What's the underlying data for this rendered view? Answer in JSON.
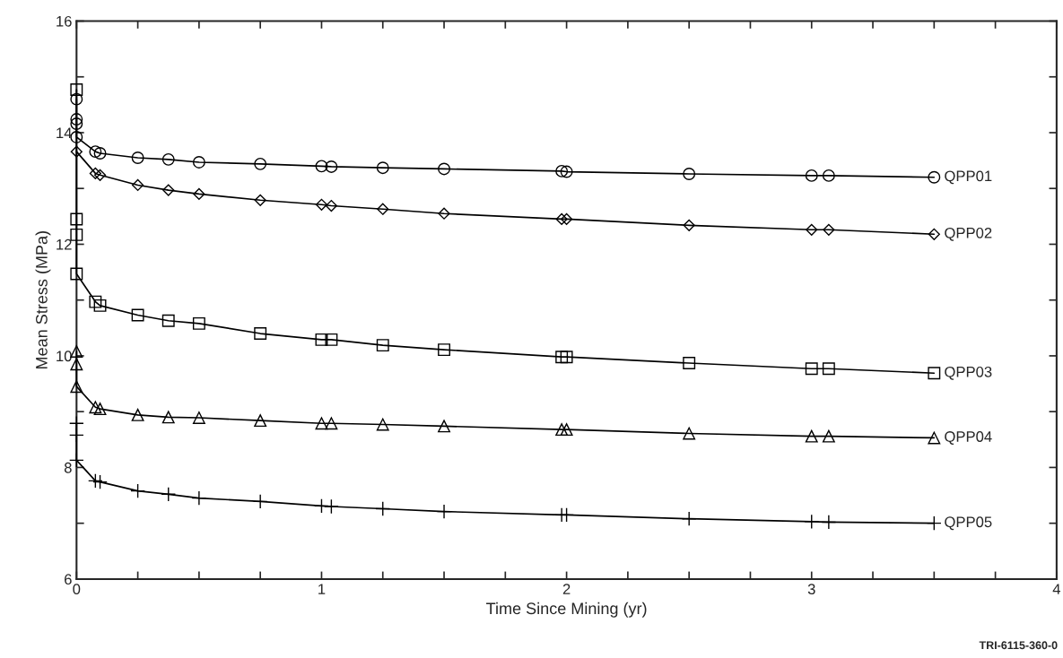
{
  "chart_data": {
    "type": "line",
    "xlabel": "Time Since Mining (yr)",
    "ylabel": "Mean Stress (MPa)",
    "xlim": [
      0,
      4
    ],
    "ylim": [
      6,
      16
    ],
    "xticks": [
      0,
      {
        "value": 0.25,
        "label": null
      },
      {
        "value": 0.5,
        "label": null
      },
      {
        "value": 0.75,
        "label": null
      },
      1,
      {
        "value": 1.25,
        "label": null
      },
      {
        "value": 1.5,
        "label": null
      },
      {
        "value": 1.75,
        "label": null
      },
      2,
      {
        "value": 2.25,
        "label": null
      },
      {
        "value": 2.5,
        "label": null
      },
      {
        "value": 2.75,
        "label": null
      },
      3,
      {
        "value": 3.25,
        "label": null
      },
      {
        "value": 3.5,
        "label": null
      },
      {
        "value": 3.75,
        "label": null
      },
      4
    ],
    "yticks": [
      6,
      {
        "value": 7,
        "label": null
      },
      8,
      {
        "value": 9,
        "label": null
      },
      10,
      {
        "value": 11,
        "label": null
      },
      12,
      {
        "value": 13,
        "label": null
      },
      14,
      {
        "value": 15,
        "label": null
      },
      16
    ],
    "grid": false,
    "legend": false,
    "series": [
      {
        "name": "QPP01",
        "color": "#000000",
        "marker": "circle",
        "x": [
          0,
          0,
          0,
          0,
          0.077,
          0.096,
          0.25,
          0.375,
          0.5,
          0.75,
          1.0,
          1.04,
          1.25,
          1.5,
          1.98,
          2.0,
          2.5,
          3.0,
          3.07,
          3.5
        ],
        "values": [
          14.6,
          14.24,
          14.16,
          13.92,
          13.66,
          13.63,
          13.55,
          13.52,
          13.47,
          13.44,
          13.4,
          13.39,
          13.37,
          13.35,
          13.31,
          13.3,
          13.26,
          13.23,
          13.23,
          13.2
        ]
      },
      {
        "name": "QPP02",
        "color": "#000000",
        "marker": "diamond",
        "x": [
          0,
          0.077,
          0.096,
          0.25,
          0.375,
          0.5,
          0.75,
          1.0,
          1.04,
          1.25,
          1.5,
          1.98,
          2.0,
          2.5,
          3.0,
          3.07,
          3.5
        ],
        "values": [
          13.66,
          13.27,
          13.24,
          13.06,
          12.97,
          12.9,
          12.79,
          12.71,
          12.69,
          12.63,
          12.55,
          12.45,
          12.45,
          12.34,
          12.26,
          12.26,
          12.18
        ]
      },
      {
        "name": "QPP03",
        "color": "#000000",
        "marker": "square",
        "x": [
          0,
          0,
          0,
          0,
          0.077,
          0.096,
          0.25,
          0.375,
          0.5,
          0.75,
          1.0,
          1.04,
          1.25,
          1.5,
          1.98,
          2.0,
          2.5,
          3.0,
          3.07,
          3.5
        ],
        "values": [
          14.77,
          12.45,
          12.17,
          11.47,
          10.97,
          10.9,
          10.73,
          10.63,
          10.58,
          10.4,
          10.29,
          10.29,
          10.19,
          10.11,
          9.98,
          9.98,
          9.87,
          9.77,
          9.77,
          9.69
        ]
      },
      {
        "name": "QPP04",
        "color": "#000000",
        "marker": "triangle",
        "x": [
          0,
          0,
          0,
          0.077,
          0.096,
          0.25,
          0.375,
          0.5,
          0.75,
          1.0,
          1.04,
          1.25,
          1.5,
          1.98,
          2.0,
          2.5,
          3.0,
          3.07,
          3.5
        ],
        "values": [
          10.08,
          9.85,
          9.45,
          9.08,
          9.05,
          8.94,
          8.9,
          8.89,
          8.84,
          8.79,
          8.79,
          8.77,
          8.74,
          8.68,
          8.68,
          8.61,
          8.56,
          8.56,
          8.53
        ]
      },
      {
        "name": "QPP05",
        "color": "#000000",
        "marker": "cross",
        "x": [
          0,
          0,
          0,
          0.077,
          0.096,
          0.25,
          0.375,
          0.5,
          0.75,
          1.0,
          1.04,
          1.25,
          1.5,
          1.98,
          2.0,
          2.5,
          3.0,
          3.07,
          3.5
        ],
        "values": [
          8.79,
          8.58,
          8.13,
          7.76,
          7.74,
          7.58,
          7.52,
          7.45,
          7.39,
          7.31,
          7.3,
          7.26,
          7.21,
          7.15,
          7.15,
          7.08,
          7.03,
          7.02,
          7.0
        ]
      }
    ],
    "annotations": [
      "TRI-6115-360-0"
    ]
  }
}
